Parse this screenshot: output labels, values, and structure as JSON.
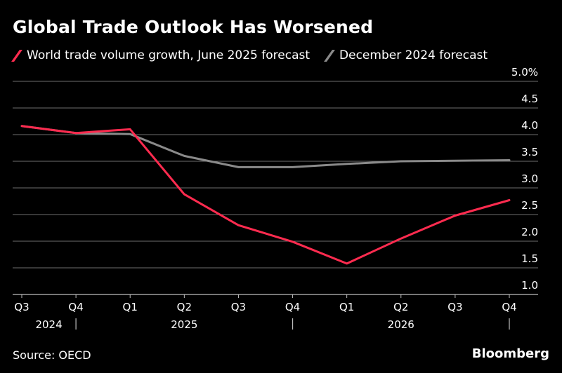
{
  "colors": {
    "background": "#000000",
    "text": "#ffffff",
    "gridline": "#6e6e6e",
    "axis": "#bdbdbd",
    "june_series": "#ff2b4f",
    "december_series": "#8a8a8a"
  },
  "source": "Source: OECD",
  "brand": "Bloomberg",
  "chart_data": {
    "type": "line",
    "title": "Global Trade Outlook Has Worsened",
    "categories": [
      "Q3",
      "Q4",
      "Q1",
      "Q2",
      "Q3",
      "Q4",
      "Q1",
      "Q2",
      "Q3",
      "Q4"
    ],
    "year_labels": [
      {
        "label": "2024",
        "index": 0.5
      },
      {
        "label": "2025",
        "index": 3.0
      },
      {
        "label": "2026",
        "index": 7.0
      }
    ],
    "year_separators": [
      1,
      5,
      9
    ],
    "series": [
      {
        "name": "World trade volume growth, June 2025 forecast",
        "color": "#ff2b4f",
        "values": [
          4.16,
          4.03,
          4.1,
          2.88,
          2.3,
          1.99,
          1.58,
          2.05,
          2.48,
          2.77
        ]
      },
      {
        "name": "December 2024 forecast",
        "color": "#8a8a8a",
        "values": [
          4.16,
          4.03,
          4.01,
          3.6,
          3.39,
          3.39,
          3.45,
          3.5,
          3.51,
          3.52
        ]
      }
    ],
    "y_ticks": [
      "5.0%",
      "4.5",
      "4.0",
      "3.5",
      "3.0",
      "2.5",
      "2.0",
      "1.5",
      "1.0"
    ],
    "y_tick_values": [
      5.0,
      4.5,
      4.0,
      3.5,
      3.0,
      2.5,
      2.0,
      1.5,
      1.0
    ],
    "ylim": [
      1.0,
      5.0
    ],
    "grid": true,
    "legend": "top-left"
  }
}
